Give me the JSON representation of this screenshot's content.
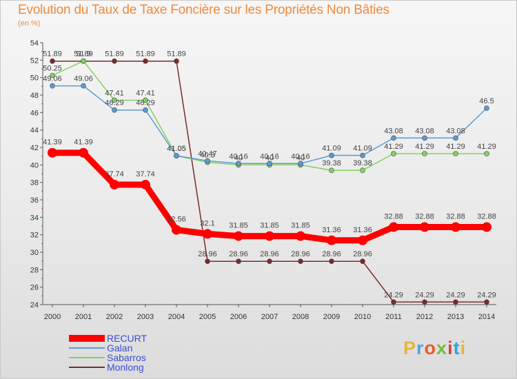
{
  "title": "Evolution du Taux de Taxe Foncière sur les Propriétés Non Bâties",
  "subtitle": "(en %)",
  "logo": {
    "text": "Proxiti",
    "colors": [
      "#e8b43a",
      "#5aa0d8",
      "#e85a2a",
      "#79b93f",
      "#d6423a",
      "#3aa0d8",
      "#e8b43a"
    ]
  },
  "chart_data": {
    "type": "line",
    "title": "Evolution du Taux de Taxe Foncière sur les Propriétés Non Bâties",
    "ylabel": "(en %)",
    "xlabel": "",
    "x": [
      "2000",
      "2001",
      "2002",
      "2003",
      "2004",
      "2005",
      "2006",
      "2007",
      "2008",
      "2009",
      "2010",
      "2011",
      "2012",
      "2013",
      "2014"
    ],
    "ylim": [
      24,
      54
    ],
    "yticks": [
      24,
      26,
      28,
      30,
      32,
      34,
      36,
      38,
      40,
      42,
      44,
      46,
      48,
      50,
      52,
      54
    ],
    "grid": false,
    "legend_position": "bottom-left",
    "series": [
      {
        "name": "RECURT",
        "color": "#ff0000",
        "values": [
          41.39,
          41.39,
          37.74,
          37.74,
          32.56,
          32.1,
          31.85,
          31.85,
          31.85,
          31.36,
          31.36,
          32.88,
          32.88,
          32.88,
          32.88
        ],
        "labels": [
          "41.39",
          "41.39",
          "37.74",
          "37.74",
          "32.56",
          "32.1",
          "31.85",
          "31.85",
          "31.85",
          "31.36",
          "31.36",
          "32.88",
          "32.88",
          "32.88",
          "32.88"
        ]
      },
      {
        "name": "Galan",
        "color": "#5b9bd5",
        "values": [
          49.06,
          49.06,
          46.29,
          46.29,
          41.05,
          40.47,
          40.16,
          40.16,
          40.16,
          41.09,
          41.09,
          43.08,
          43.08,
          43.08,
          46.5
        ],
        "labels": [
          "49.06",
          "49.06",
          "46.29",
          "46.29",
          "41.05",
          "40.47",
          "40.16",
          "40.16",
          "40.16",
          "41.09",
          "41.09",
          "43.08",
          "43.08",
          "43.08",
          "46.5"
        ]
      },
      {
        "name": "Sabarros",
        "color": "#7fd35e",
        "values": [
          50.25,
          51.9,
          47.41,
          47.41,
          41.05,
          40.3,
          40,
          40,
          40,
          39.38,
          39.38,
          41.29,
          41.29,
          41.29,
          41.29
        ],
        "labels": [
          "50.25",
          "51.9",
          "47.41",
          "47.41",
          "41.05",
          "40.3",
          "40",
          "40",
          "40",
          "39.38",
          "39.38",
          "41.29",
          "41.29",
          "41.29",
          "41.29"
        ]
      },
      {
        "name": "Monlong",
        "color": "#7a2a2a",
        "values": [
          51.89,
          51.89,
          51.89,
          51.89,
          51.89,
          28.96,
          28.96,
          28.96,
          28.96,
          28.96,
          28.96,
          24.29,
          24.29,
          24.29,
          24.29
        ],
        "labels": [
          "51.89",
          "51.89",
          "51.89",
          "51.89",
          "51.89",
          "28.96",
          "28.96",
          "28.96",
          "28.96",
          "28.96",
          "28.96",
          "24.29",
          "24.29",
          "24.29",
          "24.29"
        ]
      }
    ]
  }
}
